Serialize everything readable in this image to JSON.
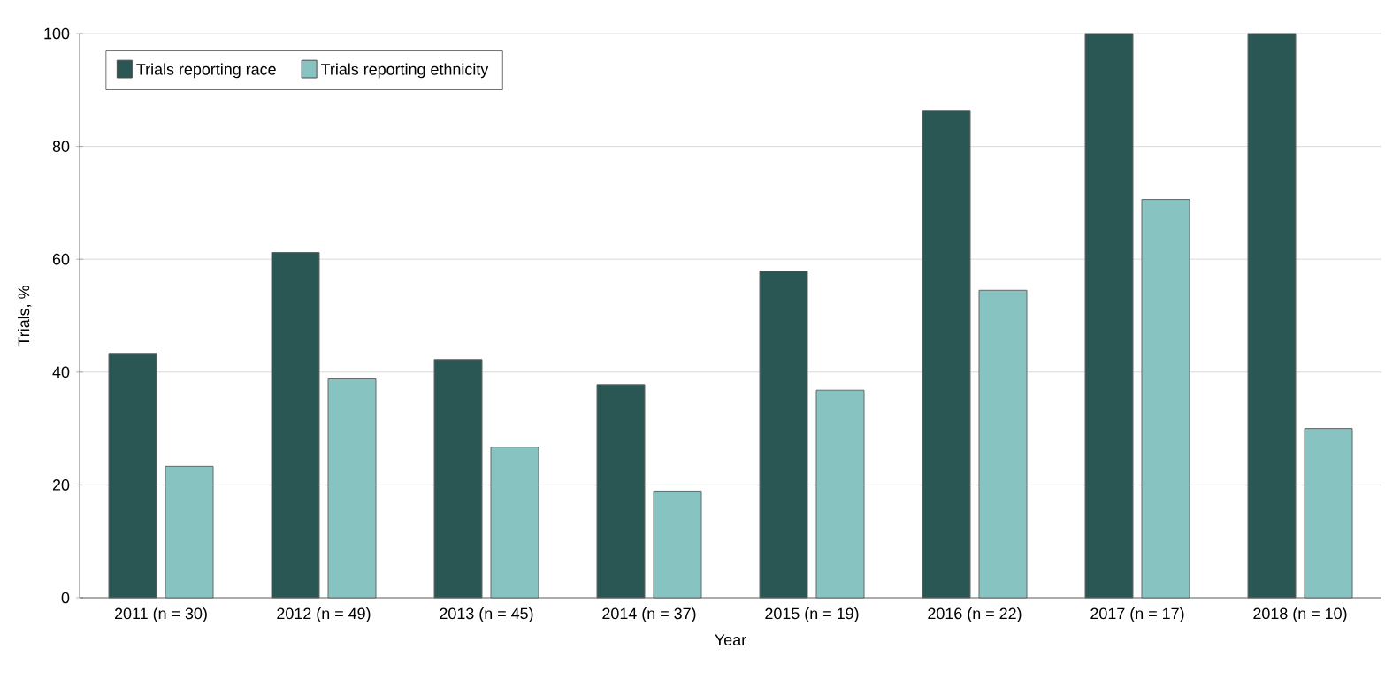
{
  "chart_data": {
    "type": "bar",
    "xlabel": "Year",
    "ylabel": "Trials, %",
    "categories": [
      "2011 (n = 30)",
      "2012 (n = 49)",
      "2013 (n = 45)",
      "2014 (n = 37)",
      "2015 (n = 19)",
      "2016 (n = 22)",
      "2017 (n = 17)",
      "2018 (n = 10)"
    ],
    "series": [
      {
        "name": "Trials reporting race",
        "color": "#2a5654",
        "values": [
          43.3,
          61.2,
          42.2,
          37.8,
          57.9,
          86.4,
          100,
          100
        ]
      },
      {
        "name": "Trials reporting ethnicity",
        "color": "#86c3c1",
        "values": [
          23.3,
          38.8,
          26.7,
          18.9,
          36.8,
          54.5,
          70.6,
          30
        ]
      }
    ],
    "ylim": [
      0,
      100
    ],
    "yticks": [
      0,
      20,
      40,
      60,
      80,
      100
    ],
    "grid": "y",
    "legend": "top left"
  }
}
